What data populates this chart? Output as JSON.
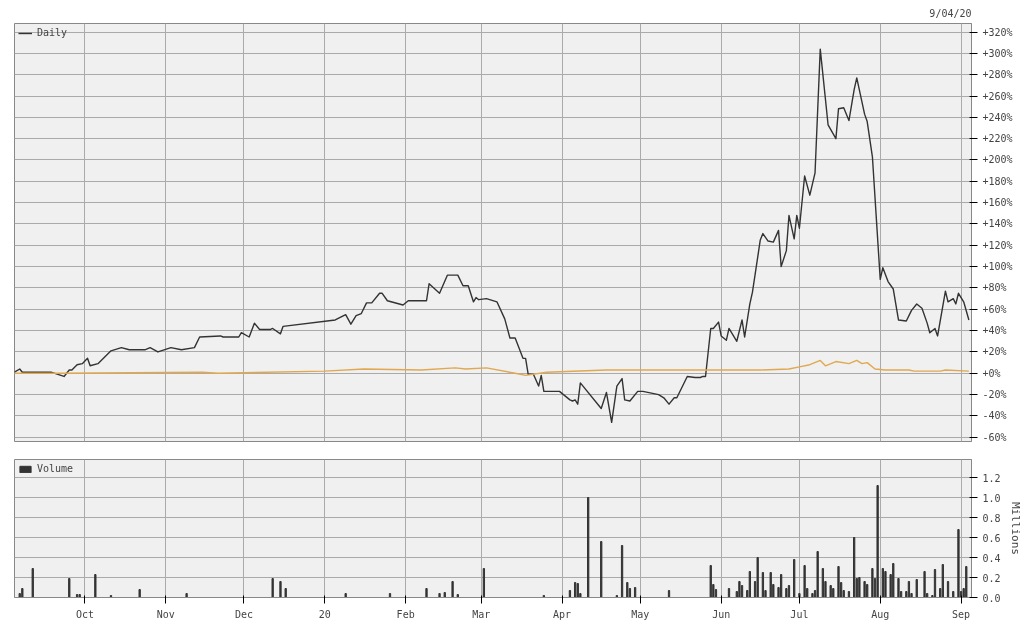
{
  "chart_data": [
    {
      "type": "line",
      "annotations": [
        "9/04/20"
      ],
      "legend": "top left",
      "grid": true,
      "tick_labels": "y",
      "xlim": [
        "2019-09-04",
        "2020-09-05"
      ],
      "xticks": [
        {
          "value": "2019-10-01",
          "label": null
        },
        {
          "value": "2019-11-01",
          "label": null
        },
        {
          "value": "2019-12-01",
          "label": null
        },
        {
          "value": "2020-01-01",
          "label": null
        },
        {
          "value": "2020-02-01",
          "label": null
        },
        {
          "value": "2020-03-01",
          "label": null
        },
        {
          "value": "2020-04-01",
          "label": null
        },
        {
          "value": "2020-05-01",
          "label": null
        },
        {
          "value": "2020-06-01",
          "label": null
        },
        {
          "value": "2020-07-01",
          "label": null
        },
        {
          "value": "2020-08-01",
          "label": null
        },
        {
          "value": "2020-09-01",
          "label": null
        }
      ],
      "ylim": [
        -64,
        328
      ],
      "yticks": [
        {
          "value": -60,
          "label": "-60%"
        },
        {
          "value": -40,
          "label": "-40%"
        },
        {
          "value": -20,
          "label": "-20%"
        },
        {
          "value": 0,
          "label": "+0%"
        },
        {
          "value": 20,
          "label": "+20%"
        },
        {
          "value": 40,
          "label": "+40%"
        },
        {
          "value": 60,
          "label": "+60%"
        },
        {
          "value": 80,
          "label": "+80%"
        },
        {
          "value": 100,
          "label": "+100%"
        },
        {
          "value": 120,
          "label": "+120%"
        },
        {
          "value": 140,
          "label": "+140%"
        },
        {
          "value": 160,
          "label": "+160%"
        },
        {
          "value": 180,
          "label": "+180%"
        },
        {
          "value": 200,
          "label": "+200%"
        },
        {
          "value": 220,
          "label": "+220%"
        },
        {
          "value": 240,
          "label": "+240%"
        },
        {
          "value": 260,
          "label": "+260%"
        },
        {
          "value": 280,
          "label": "+280%"
        },
        {
          "value": 300,
          "label": "+300%"
        },
        {
          "value": 320,
          "label": "+320%"
        }
      ],
      "series": [
        {
          "name": "Daily",
          "color": "#333333",
          "x": [
            "2019-09-04",
            "2019-09-06",
            "2019-09-07",
            "2019-09-18",
            "2019-09-23",
            "2019-09-25",
            "2019-09-26",
            "2019-09-28",
            "2019-09-30",
            "2019-10-02",
            "2019-10-03",
            "2019-10-06",
            "2019-10-11",
            "2019-10-15",
            "2019-10-18",
            "2019-10-24",
            "2019-10-26",
            "2019-10-29",
            "2019-11-03",
            "2019-11-07",
            "2019-11-12",
            "2019-11-14",
            "2019-11-22",
            "2019-11-23",
            "2019-11-29",
            "2019-11-30",
            "2019-12-03",
            "2019-12-05",
            "2019-12-07",
            "2019-12-11",
            "2019-12-12",
            "2019-12-15",
            "2019-12-16",
            "2020-01-05",
            "2020-01-09",
            "2020-01-11",
            "2020-01-13",
            "2020-01-15",
            "2020-01-17",
            "2020-01-19",
            "2020-01-22",
            "2020-01-23",
            "2020-01-25",
            "2020-01-31",
            "2020-02-02",
            "2020-02-09",
            "2020-02-10",
            "2020-02-14",
            "2020-02-17",
            "2020-02-21",
            "2020-02-23",
            "2020-02-25",
            "2020-02-27",
            "2020-02-28",
            "2020-02-29",
            "2020-03-03",
            "2020-03-07",
            "2020-03-10",
            "2020-03-12",
            "2020-03-14",
            "2020-03-17",
            "2020-03-18",
            "2020-03-19",
            "2020-03-21",
            "2020-03-23",
            "2020-03-24",
            "2020-03-25",
            "2020-03-31",
            "2020-04-04",
            "2020-04-05",
            "2020-04-06",
            "2020-04-07",
            "2020-04-08",
            "2020-04-16",
            "2020-04-18",
            "2020-04-20",
            "2020-04-22",
            "2020-04-24",
            "2020-04-25",
            "2020-04-27",
            "2020-04-30",
            "2020-05-02",
            "2020-05-08",
            "2020-05-10",
            "2020-05-12",
            "2020-05-14",
            "2020-05-15",
            "2020-05-19",
            "2020-05-22",
            "2020-05-24",
            "2020-05-25",
            "2020-05-26",
            "2020-05-28",
            "2020-05-29",
            "2020-05-31",
            "2020-06-01",
            "2020-06-03",
            "2020-06-04",
            "2020-06-07",
            "2020-06-09",
            "2020-06-10",
            "2020-06-12",
            "2020-06-13",
            "2020-06-16",
            "2020-06-17",
            "2020-06-19",
            "2020-06-21",
            "2020-06-23",
            "2020-06-24",
            "2020-06-26",
            "2020-06-27",
            "2020-06-29",
            "2020-06-30",
            "2020-07-01",
            "2020-07-03",
            "2020-07-05",
            "2020-07-07",
            "2020-07-09",
            "2020-07-12",
            "2020-07-15",
            "2020-07-16",
            "2020-07-18",
            "2020-07-20",
            "2020-07-22",
            "2020-07-23",
            "2020-07-26",
            "2020-07-27",
            "2020-07-29",
            "2020-08-01",
            "2020-08-02",
            "2020-08-04",
            "2020-08-06",
            "2020-08-08",
            "2020-08-11",
            "2020-08-13",
            "2020-08-15",
            "2020-08-17",
            "2020-08-19",
            "2020-08-20",
            "2020-08-22",
            "2020-08-23",
            "2020-08-26",
            "2020-08-27",
            "2020-08-29",
            "2020-08-30",
            "2020-08-31",
            "2020-09-02",
            "2020-09-04"
          ],
          "values": [
            1,
            4,
            1,
            1,
            -3,
            3,
            3,
            8,
            9,
            14,
            7,
            9,
            21,
            24,
            22,
            22,
            24,
            20,
            24,
            22,
            24,
            34,
            35,
            34,
            34,
            38,
            34,
            47,
            41,
            41,
            42,
            37,
            44,
            50,
            55,
            46,
            54,
            56,
            66,
            66,
            75,
            75,
            68,
            64,
            68,
            68,
            84,
            75,
            92,
            92,
            82,
            82,
            67,
            71,
            69,
            70,
            67,
            51,
            33,
            33,
            14,
            14,
            -1,
            -1,
            -12,
            -2,
            -17,
            -17,
            -25,
            -26,
            -25,
            -29,
            -9,
            -33,
            -18,
            -46,
            -12,
            -5,
            -25,
            -26,
            -17,
            -17,
            -20,
            -23,
            -29,
            -23,
            -23,
            -3,
            -4,
            -4,
            -3,
            -3,
            42,
            42,
            48,
            35,
            31,
            42,
            30,
            50,
            34,
            65,
            76,
            125,
            131,
            124,
            123,
            134,
            100,
            115,
            148,
            126,
            148,
            136,
            185,
            167,
            188,
            304,
            233,
            220,
            248,
            249,
            237,
            266,
            277,
            243,
            236,
            203,
            88,
            99,
            86,
            79,
            50,
            49,
            59,
            65,
            61,
            47,
            38,
            42,
            35,
            77,
            67,
            70,
            65,
            75,
            67,
            50
          ]
        },
        {
          "color": "#e0a850",
          "x": [
            "2019-09-04",
            "2019-09-22",
            "2019-11-15",
            "2019-11-21",
            "2020-01-01",
            "2020-01-16",
            "2020-02-07",
            "2020-02-20",
            "2020-02-24",
            "2020-03-03",
            "2020-03-14",
            "2020-03-18",
            "2020-03-26",
            "2020-04-18",
            "2020-05-27",
            "2020-06-16",
            "2020-06-27",
            "2020-07-01",
            "2020-07-05",
            "2020-07-09",
            "2020-07-11",
            "2020-07-15",
            "2020-07-20",
            "2020-07-23",
            "2020-07-25",
            "2020-07-27",
            "2020-07-30",
            "2020-08-03",
            "2020-08-12",
            "2020-08-14",
            "2020-08-24",
            "2020-08-26",
            "2020-09-04"
          ],
          "values": [
            0,
            0,
            1,
            0,
            2,
            4,
            3,
            5,
            4,
            5,
            0,
            -2,
            1,
            3,
            3,
            3,
            4,
            6,
            8,
            12,
            7,
            11,
            9,
            12,
            9,
            10,
            4,
            3,
            3,
            2,
            2,
            3,
            2
          ]
        }
      ]
    },
    {
      "type": "bar",
      "ylabel": "Millions",
      "legend": "top left",
      "grid": true,
      "xlim": [
        "2019-09-04",
        "2020-09-05"
      ],
      "xticks": [
        {
          "value": "2019-10-01",
          "label": "Oct"
        },
        {
          "value": "2019-11-01",
          "label": "Nov"
        },
        {
          "value": "2019-12-01",
          "label": "Dec"
        },
        {
          "value": "2020-01-01",
          "label": "20"
        },
        {
          "value": "2020-02-01",
          "label": "Feb"
        },
        {
          "value": "2020-03-01",
          "label": "Mar"
        },
        {
          "value": "2020-04-01",
          "label": "Apr"
        },
        {
          "value": "2020-05-01",
          "label": "May"
        },
        {
          "value": "2020-06-01",
          "label": "Jun"
        },
        {
          "value": "2020-07-01",
          "label": "Jul"
        },
        {
          "value": "2020-08-01",
          "label": "Aug"
        },
        {
          "value": "2020-09-01",
          "label": "Sep"
        }
      ],
      "ylim": [
        0,
        1.38
      ],
      "yticks": [
        {
          "value": 0,
          "label": "0.0"
        },
        {
          "value": 0.2,
          "label": "0.2"
        },
        {
          "value": 0.4,
          "label": "0.4"
        },
        {
          "value": 0.6,
          "label": "0.6"
        },
        {
          "value": 0.8,
          "label": "0.8"
        },
        {
          "value": 1.0,
          "label": "1.0"
        },
        {
          "value": 1.2,
          "label": "1.2"
        }
      ],
      "series": [
        {
          "name": "Volume",
          "color": "#333333",
          "x": [
            "2019-09-06",
            "2019-09-07",
            "2019-09-11",
            "2019-09-25",
            "2019-09-28",
            "2019-09-29",
            "2019-10-05",
            "2019-10-11",
            "2019-10-22",
            "2019-11-09",
            "2019-12-12",
            "2019-12-15",
            "2019-12-17",
            "2020-01-09",
            "2020-01-26",
            "2020-02-09",
            "2020-02-14",
            "2020-02-16",
            "2020-02-19",
            "2020-02-21",
            "2020-03-02",
            "2020-03-25",
            "2020-04-04",
            "2020-04-06",
            "2020-04-07",
            "2020-04-08",
            "2020-04-11",
            "2020-04-16",
            "2020-04-22",
            "2020-04-24",
            "2020-04-26",
            "2020-04-27",
            "2020-04-29",
            "2020-05-12",
            "2020-05-28",
            "2020-05-29",
            "2020-05-30",
            "2020-06-04",
            "2020-06-07",
            "2020-06-08",
            "2020-06-09",
            "2020-06-11",
            "2020-06-12",
            "2020-06-14",
            "2020-06-15",
            "2020-06-17",
            "2020-06-18",
            "2020-06-20",
            "2020-06-21",
            "2020-06-23",
            "2020-06-24",
            "2020-06-26",
            "2020-06-27",
            "2020-06-29",
            "2020-07-01",
            "2020-07-03",
            "2020-07-04",
            "2020-07-06",
            "2020-07-07",
            "2020-07-08",
            "2020-07-10",
            "2020-07-11",
            "2020-07-13",
            "2020-07-14",
            "2020-07-16",
            "2020-07-17",
            "2020-07-18",
            "2020-07-20",
            "2020-07-22",
            "2020-07-23",
            "2020-07-24",
            "2020-07-26",
            "2020-07-27",
            "2020-07-29",
            "2020-07-30",
            "2020-07-31",
            "2020-08-02",
            "2020-08-03",
            "2020-08-05",
            "2020-08-06",
            "2020-08-08",
            "2020-08-09",
            "2020-08-11",
            "2020-08-12",
            "2020-08-13",
            "2020-08-15",
            "2020-08-18",
            "2020-08-19",
            "2020-08-21",
            "2020-08-22",
            "2020-08-24",
            "2020-08-25",
            "2020-08-27",
            "2020-08-29",
            "2020-08-31",
            "2020-09-01",
            "2020-09-02",
            "2020-09-03"
          ],
          "values": [
            0.04,
            0.09,
            0.29,
            0.19,
            0.03,
            0.03,
            0.23,
            0.02,
            0.08,
            0.04,
            0.19,
            0.16,
            0.09,
            0.04,
            0.04,
            0.09,
            0.04,
            0.05,
            0.16,
            0.03,
            0.29,
            0.02,
            0.07,
            0.15,
            0.14,
            0.04,
            1.0,
            0.56,
            0.02,
            0.52,
            0.15,
            0.09,
            0.1,
            0.07,
            0.32,
            0.13,
            0.08,
            0.09,
            0.06,
            0.16,
            0.12,
            0.07,
            0.26,
            0.16,
            0.4,
            0.25,
            0.07,
            0.25,
            0.13,
            0.1,
            0.23,
            0.09,
            0.12,
            0.38,
            0.04,
            0.32,
            0.09,
            0.04,
            0.07,
            0.46,
            0.29,
            0.16,
            0.12,
            0.09,
            0.31,
            0.15,
            0.07,
            0.06,
            0.6,
            0.19,
            0.2,
            0.16,
            0.13,
            0.29,
            0.19,
            1.12,
            0.29,
            0.26,
            0.23,
            0.34,
            0.19,
            0.06,
            0.06,
            0.16,
            0.04,
            0.18,
            0.26,
            0.04,
            0.02,
            0.28,
            0.09,
            0.33,
            0.16,
            0.06,
            0.68,
            0.06,
            0.09,
            0.31
          ]
        }
      ]
    }
  ]
}
